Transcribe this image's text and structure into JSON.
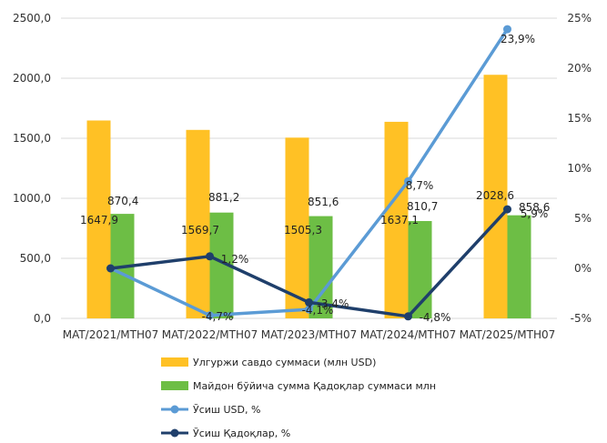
{
  "chart_data": {
    "type": "bar",
    "categories": [
      "MAT/2021/MTH07",
      "MAT/2022/MTH07",
      "MAT/2023/MTH07",
      "MAT/2024/MTH07",
      "MAT/2025/MTH07"
    ],
    "series": [
      {
        "name": "Улгуржи савдо суммаси (млн USD)",
        "kind": "bar",
        "axis": "left",
        "color": "#FFC125",
        "values": [
          1647.9,
          1569.7,
          1505.3,
          1637.1,
          2028.6
        ],
        "labels": [
          "1647,9",
          "1569,7",
          "1505,3",
          "1637,1",
          "2028,6"
        ]
      },
      {
        "name": "Майдон бўйича сумма Қадоқлар суммаси млн",
        "kind": "bar",
        "axis": "left",
        "color": "#6DBE45",
        "values": [
          870.4,
          881.2,
          851.6,
          810.7,
          858.6
        ],
        "labels": [
          "870,4",
          "881,2",
          "851,6",
          "810,7",
          "858,6"
        ]
      },
      {
        "name": "Ўсиш USD, %",
        "kind": "line",
        "axis": "right",
        "color": "#5B9BD5",
        "values": [
          0,
          -4.7,
          -4.1,
          8.7,
          23.9
        ],
        "labels": [
          "",
          "-4,7%",
          "-4,1%",
          "8,7%",
          "23,9%"
        ]
      },
      {
        "name": "Ўсиш Қадоқлар, %",
        "kind": "line",
        "axis": "right",
        "color": "#1F3F6B",
        "values": [
          0,
          1.2,
          -3.4,
          -4.8,
          5.9
        ],
        "labels": [
          "",
          "1,2%",
          "-3,4%",
          "-4,8%",
          "5,9%"
        ]
      }
    ],
    "y_left": {
      "ylim": [
        0,
        2500
      ],
      "ticks": [
        0,
        500,
        1000,
        1500,
        2000,
        2500
      ],
      "tick_labels": [
        "0,0",
        "500,0",
        "1000,0",
        "1500,0",
        "2000,0",
        "2500,0"
      ]
    },
    "y_right": {
      "ylim": [
        -5,
        25
      ],
      "ticks": [
        -5,
        0,
        5,
        10,
        15,
        20,
        25
      ],
      "tick_labels": [
        "-5%",
        "0%",
        "5%",
        "10%",
        "15%",
        "20%",
        "25%"
      ]
    },
    "grid": true,
    "legend_position": "bottom"
  }
}
